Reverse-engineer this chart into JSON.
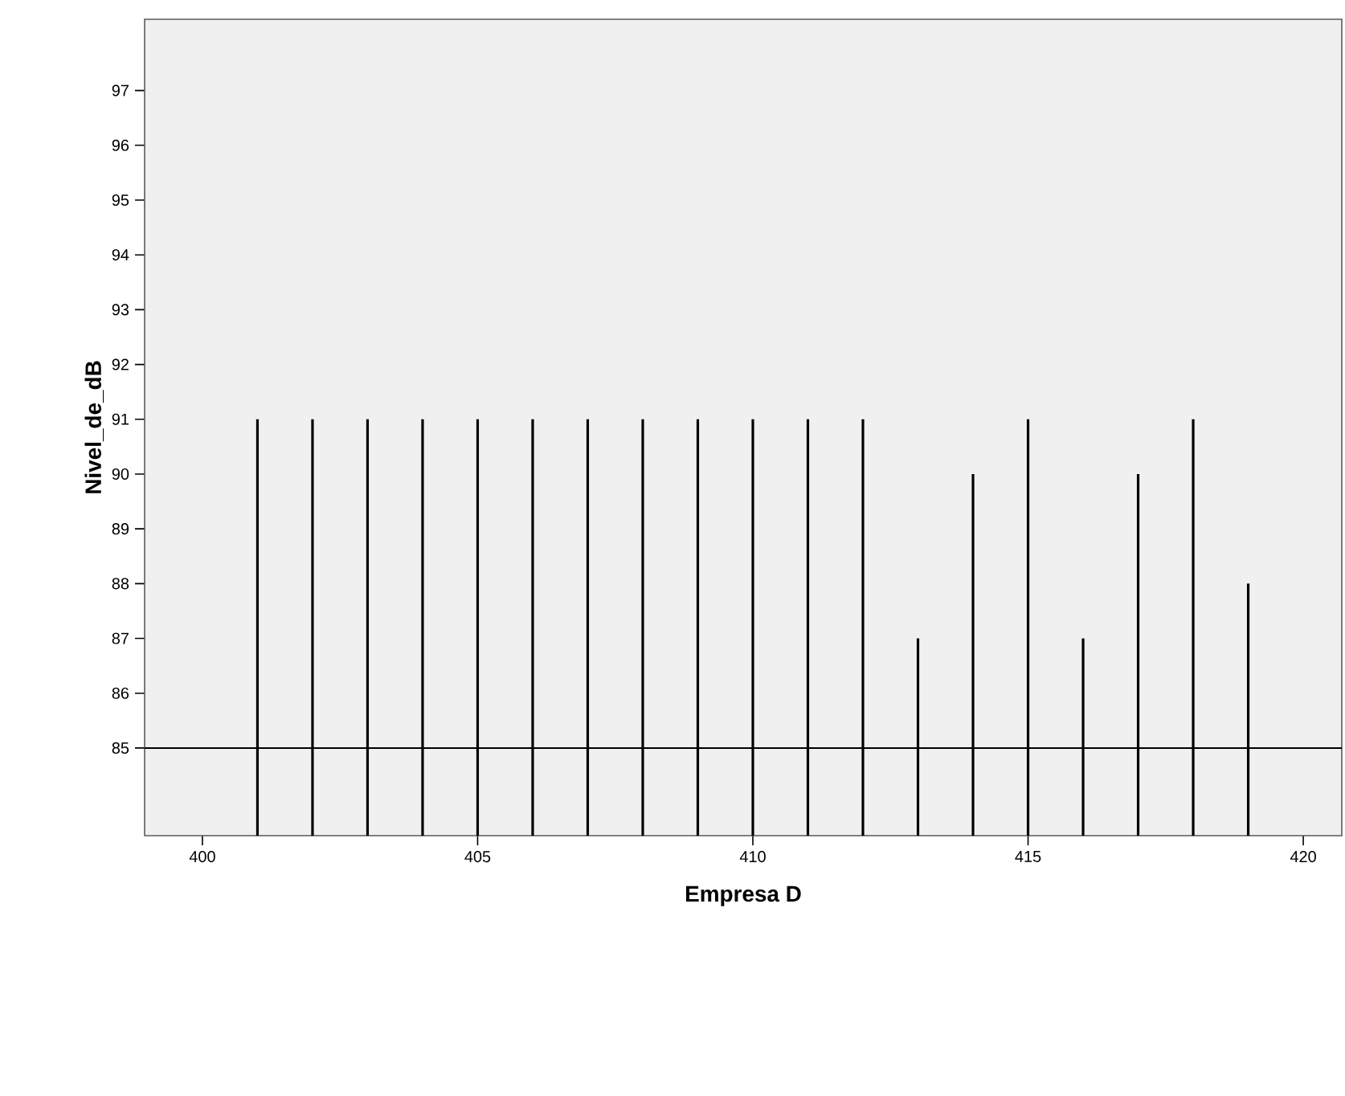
{
  "chart_data": {
    "type": "bar",
    "xlabel": "Empresa D",
    "ylabel": "Nivel_de_dB",
    "x": [
      401,
      402,
      403,
      404,
      405,
      406,
      407,
      408,
      409,
      410,
      411,
      412,
      413,
      414,
      415,
      416,
      417,
      418,
      419
    ],
    "values": [
      91,
      91,
      91,
      91,
      91,
      91,
      91,
      91,
      91,
      91,
      91,
      91,
      87,
      90,
      91,
      87,
      90,
      91,
      88
    ],
    "color": "#000000",
    "xlim": [
      398.95,
      420.7
    ],
    "ylim": [
      83.4,
      98.3
    ],
    "xticks": [
      400,
      405,
      410,
      415,
      420
    ],
    "yticks": [
      85,
      86,
      87,
      88,
      89,
      90,
      91,
      92,
      93,
      94,
      95,
      96,
      97
    ],
    "ref_lines": [
      {
        "axis": "y",
        "value": 85,
        "color": "#000000"
      }
    ],
    "grid": false
  }
}
